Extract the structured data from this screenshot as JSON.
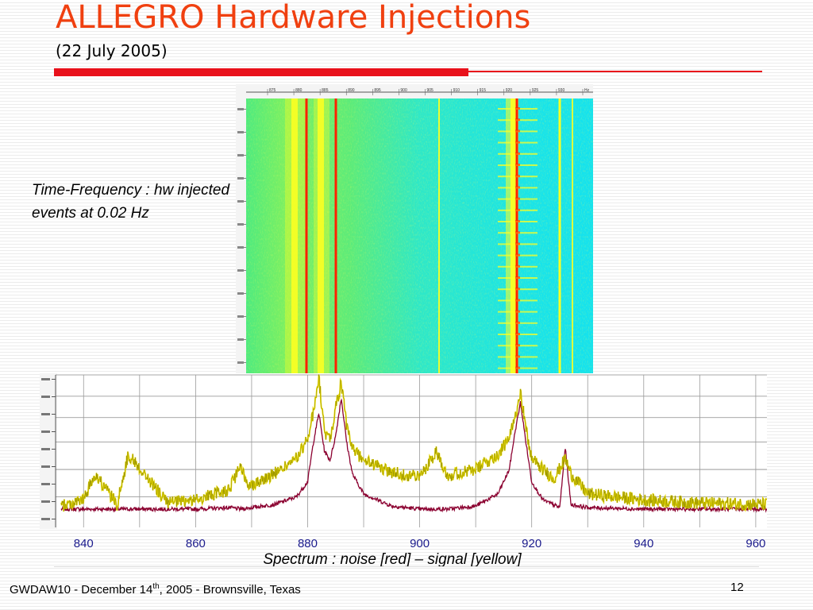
{
  "slide": {
    "title": "ALLEGRO Hardware Injections",
    "subtitle": "(22 July 2005)",
    "accent_color": "#f04010",
    "rule_color": "#e8101a"
  },
  "time_frequency": {
    "caption": "Time-Frequency : hw injected events at 0.02 Hz",
    "colormap": [
      "#16e6f0",
      "#ffff20",
      "#ff2000"
    ],
    "top_axis_ticks": [
      "875",
      "880",
      "885",
      "890",
      "895",
      "900",
      "905",
      "910",
      "915",
      "920",
      "925",
      "930",
      "Hz"
    ]
  },
  "chart_data": {
    "type": "line",
    "caption": "Spectrum : noise [red] – signal [yellow]",
    "xlim": [
      835,
      962
    ],
    "x_ticks": [
      840,
      860,
      880,
      900,
      920,
      940,
      960
    ],
    "grid": true,
    "legend": "none",
    "series": [
      {
        "name": "noise [red]",
        "color": "#8b0030",
        "x": [
          836,
          845,
          852,
          860,
          866,
          868,
          870,
          874,
          878,
          880,
          881,
          882,
          883,
          884,
          885,
          886,
          887,
          888,
          890,
          895,
          900,
          905,
          910,
          914,
          916,
          917,
          918,
          919,
          920,
          922,
          925,
          926,
          927,
          930,
          940,
          950,
          962
        ],
        "values": [
          0.12,
          0.12,
          0.12,
          0.12,
          0.13,
          0.12,
          0.13,
          0.15,
          0.2,
          0.3,
          0.55,
          0.75,
          0.5,
          0.44,
          0.6,
          0.85,
          0.55,
          0.35,
          0.22,
          0.14,
          0.12,
          0.12,
          0.14,
          0.22,
          0.38,
          0.62,
          0.82,
          0.55,
          0.3,
          0.18,
          0.13,
          0.52,
          0.15,
          0.13,
          0.12,
          0.12,
          0.12
        ]
      },
      {
        "name": "signal [yellow]",
        "color": "#e6d800",
        "x": [
          836,
          840,
          842,
          846,
          848,
          855,
          860,
          866,
          868,
          869,
          870,
          874,
          878,
          880,
          881,
          882,
          883,
          884,
          885,
          886,
          887,
          888,
          890,
          895,
          900,
          903,
          905,
          910,
          914,
          916,
          917,
          918,
          919,
          920,
          922,
          924,
          926,
          927,
          930,
          940,
          950,
          962
        ],
        "values": [
          0.14,
          0.18,
          0.35,
          0.15,
          0.48,
          0.16,
          0.18,
          0.25,
          0.4,
          0.3,
          0.28,
          0.35,
          0.45,
          0.58,
          0.75,
          0.98,
          0.62,
          0.58,
          0.78,
          0.95,
          0.65,
          0.52,
          0.44,
          0.36,
          0.33,
          0.5,
          0.34,
          0.38,
          0.48,
          0.58,
          0.72,
          0.9,
          0.64,
          0.45,
          0.38,
          0.32,
          0.45,
          0.35,
          0.22,
          0.18,
          0.16,
          0.15
        ]
      }
    ]
  },
  "footer": {
    "text_before": "GWDAW10 - December 14",
    "superscript": "th",
    "text_after": ", 2005 - Brownsville, Texas",
    "page_number": "12"
  }
}
